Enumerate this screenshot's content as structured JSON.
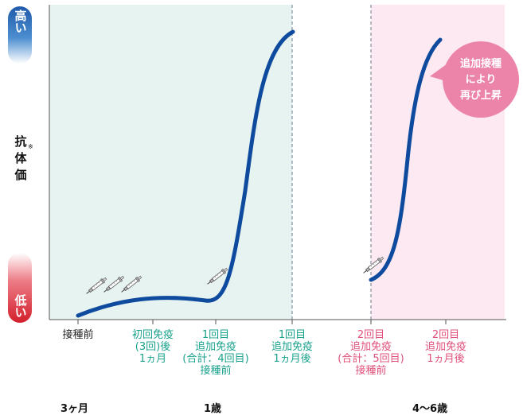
{
  "y_axis": {
    "high_label": "高い",
    "low_label": "低い",
    "title": "抗体価",
    "note_mark": "※"
  },
  "x_labels": {
    "pre": "接種前",
    "first_series": [
      "初回免疫",
      "(3回)後",
      "1ヵ月"
    ],
    "booster1_pre": [
      "1回目",
      "追加免疫",
      "(合計：4回目)",
      "接種前"
    ],
    "booster1_post": [
      "1回目",
      "追加免疫",
      "1ヵ月後"
    ],
    "booster2_pre": [
      "2回目",
      "追加免疫",
      "(合計：5回目)",
      "接種前"
    ],
    "booster2_post": [
      "2回目",
      "追加免疫",
      "1ヵ月後"
    ]
  },
  "ages": {
    "age1": "3ヶ月",
    "age2": "1歳",
    "age3": "4〜6歳"
  },
  "callout": [
    "追加接種",
    "により",
    "再び上昇"
  ],
  "colors": {
    "curve": "#0e4a9e",
    "green_zone": "#e7f3f0",
    "pink_zone": "#fce9f1",
    "green_text": "#1aa28c",
    "pink_text": "#e0507a",
    "callout_bg": "#ec84aa"
  },
  "icons": [
    "syringe-icon",
    "syringe-icon",
    "syringe-icon",
    "syringe-icon",
    "syringe-icon"
  ]
}
